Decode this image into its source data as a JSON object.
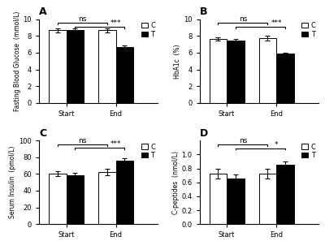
{
  "chart_data": [
    {
      "type": "bar",
      "title": "A",
      "ylabel": "Fasting Blood Glucose  (mmol/L)",
      "categories": [
        "Start",
        "End"
      ],
      "series": [
        {
          "name": "C",
          "color": "white",
          "values": [
            8.7,
            8.7
          ],
          "errors": [
            0.25,
            0.25
          ]
        },
        {
          "name": "T",
          "color": "black",
          "values": [
            8.7,
            6.7
          ],
          "errors": [
            0.25,
            0.2
          ]
        }
      ],
      "ylim": [
        0,
        10
      ],
      "yticks": [
        0,
        2,
        4,
        6,
        8,
        10
      ],
      "legend": "upper right",
      "annotations": [
        {
          "text": "ns",
          "from": {
            "category": "Start",
            "series": "C"
          },
          "to": {
            "category": "End",
            "series": "C"
          },
          "y": 9.55
        },
        {
          "text": "***",
          "from": {
            "category": "Start",
            "series": "T"
          },
          "to": {
            "category": "End",
            "series": "T"
          },
          "y": 9.1
        }
      ]
    },
    {
      "type": "bar",
      "title": "B",
      "ylabel": "HbA1c  (%)",
      "categories": [
        "Start",
        "End"
      ],
      "series": [
        {
          "name": "C",
          "color": "white",
          "values": [
            7.65,
            7.75
          ],
          "errors": [
            0.2,
            0.25
          ]
        },
        {
          "name": "T",
          "color": "black",
          "values": [
            7.5,
            5.9
          ],
          "errors": [
            0.15,
            0.1
          ]
        }
      ],
      "ylim": [
        0,
        10
      ],
      "yticks": [
        0,
        2,
        4,
        6,
        8,
        10
      ],
      "legend": "upper right",
      "annotations": [
        {
          "text": "ns",
          "from": {
            "category": "Start",
            "series": "C"
          },
          "to": {
            "category": "End",
            "series": "C"
          },
          "y": 9.55
        },
        {
          "text": "***",
          "from": {
            "category": "Start",
            "series": "T"
          },
          "to": {
            "category": "End",
            "series": "T"
          },
          "y": 9.1
        }
      ]
    },
    {
      "type": "bar",
      "title": "C",
      "ylabel": "Serum Insulin  (pmol/L)",
      "categories": [
        "Start",
        "End"
      ],
      "series": [
        {
          "name": "C",
          "color": "white",
          "values": [
            60,
            62
          ],
          "errors": [
            3,
            4
          ]
        },
        {
          "name": "T",
          "color": "black",
          "values": [
            58,
            76
          ],
          "errors": [
            3,
            3
          ]
        }
      ],
      "ylim": [
        0,
        100
      ],
      "yticks": [
        0,
        20,
        40,
        60,
        80,
        100
      ],
      "legend": "upper right",
      "annotations": [
        {
          "text": "ns",
          "from": {
            "category": "Start",
            "series": "C"
          },
          "to": {
            "category": "End",
            "series": "C"
          },
          "y": 95.5
        },
        {
          "text": "***",
          "from": {
            "category": "Start",
            "series": "T"
          },
          "to": {
            "category": "End",
            "series": "T"
          },
          "y": 91.0
        }
      ]
    },
    {
      "type": "bar",
      "title": "D",
      "ylabel": "C-peptides  (nmol/L)",
      "categories": [
        "Start",
        "End"
      ],
      "series": [
        {
          "name": "C",
          "color": "white",
          "values": [
            0.72,
            0.73
          ],
          "errors": [
            0.07,
            0.07
          ]
        },
        {
          "name": "T",
          "color": "black",
          "values": [
            0.65,
            0.85
          ],
          "errors": [
            0.06,
            0.05
          ]
        }
      ],
      "ylim": [
        0.0,
        1.2
      ],
      "yticks": [
        0.0,
        0.2,
        0.4,
        0.6,
        0.8,
        1.0
      ],
      "legend": "upper right",
      "annotations": [
        {
          "text": "ns",
          "from": {
            "category": "Start",
            "series": "C"
          },
          "to": {
            "category": "End",
            "series": "C"
          },
          "y": 1.145
        },
        {
          "text": "*",
          "from": {
            "category": "Start",
            "series": "T"
          },
          "to": {
            "category": "End",
            "series": "T"
          },
          "y": 1.09
        }
      ]
    }
  ]
}
